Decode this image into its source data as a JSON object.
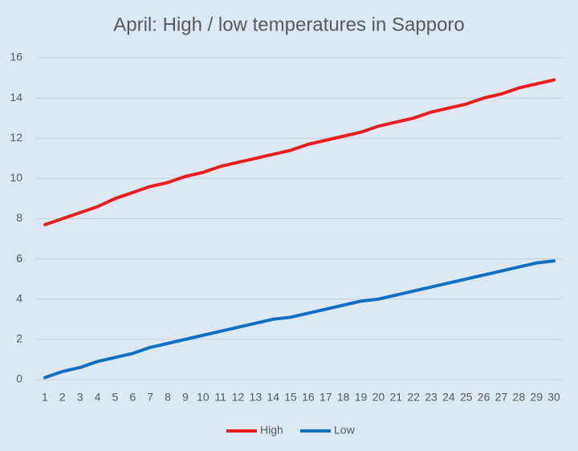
{
  "chart_data": {
    "type": "line",
    "title": "April: High / low temperatures in Sapporo",
    "categories": [
      "1",
      "2",
      "3",
      "4",
      "5",
      "6",
      "7",
      "8",
      "9",
      "10",
      "11",
      "12",
      "13",
      "14",
      "15",
      "16",
      "17",
      "18",
      "19",
      "20",
      "21",
      "22",
      "23",
      "24",
      "25",
      "26",
      "27",
      "28",
      "29",
      "30"
    ],
    "series": [
      {
        "name": "High",
        "color": "#ee1c1c",
        "values": [
          7.7,
          8.0,
          8.3,
          8.6,
          9.0,
          9.3,
          9.6,
          9.8,
          10.1,
          10.3,
          10.6,
          10.8,
          11.0,
          11.2,
          11.4,
          11.7,
          11.9,
          12.1,
          12.3,
          12.6,
          12.8,
          13.0,
          13.3,
          13.5,
          13.7,
          14.0,
          14.2,
          14.5,
          14.7,
          14.9
        ]
      },
      {
        "name": "Low",
        "color": "#0f6fc0",
        "values": [
          0.1,
          0.4,
          0.6,
          0.9,
          1.1,
          1.3,
          1.6,
          1.8,
          2.0,
          2.2,
          2.4,
          2.6,
          2.8,
          3.0,
          3.1,
          3.3,
          3.5,
          3.7,
          3.9,
          4.0,
          4.2,
          4.4,
          4.6,
          4.8,
          5.0,
          5.2,
          5.4,
          5.6,
          5.8,
          5.9
        ]
      }
    ],
    "ylim": [
      0,
      16
    ],
    "yticks": [
      0,
      2,
      4,
      6,
      8,
      10,
      12,
      14,
      16
    ],
    "grid": true,
    "legend": "bottom"
  }
}
